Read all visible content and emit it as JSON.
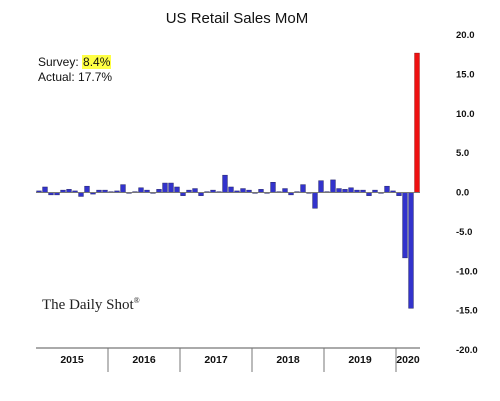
{
  "chart_data": {
    "type": "bar",
    "title": "US Retail Sales MoM",
    "ylim": [
      -20,
      20
    ],
    "y_ticks": [
      "20.0",
      "15.0",
      "10.0",
      "5.0",
      "0.0",
      "-5.0",
      "-10.0",
      "-15.0",
      "-20.0"
    ],
    "y_axis_position": "right",
    "years": [
      "2015",
      "2016",
      "2017",
      "2018",
      "2019",
      "2020"
    ],
    "grid": false,
    "colors": {
      "bars": "#3333cc",
      "highlight": "#ee1111",
      "zero_line": "#777777"
    },
    "monthly_values": [
      0.2,
      0.7,
      -0.3,
      -0.3,
      0.3,
      0.4,
      0.2,
      -0.5,
      0.8,
      -0.2,
      0.3,
      0.3,
      0.1,
      0.2,
      1.0,
      0.0,
      0.1,
      0.6,
      0.3,
      -0.1,
      0.4,
      1.2,
      1.2,
      0.7,
      -0.4,
      0.3,
      0.5,
      -0.4,
      0.1,
      0.3,
      0.1,
      2.2,
      0.7,
      0.2,
      0.5,
      0.3,
      0.0,
      0.4,
      0.0,
      1.3,
      0.1,
      0.5,
      -0.3,
      0.1,
      1.0,
      -0.1,
      -2.0,
      1.5,
      0.1,
      1.6,
      0.5,
      0.4,
      0.6,
      0.3,
      0.3,
      -0.4,
      0.3,
      0.0,
      0.8,
      0.2,
      -0.4,
      -8.3,
      -14.7,
      17.7
    ],
    "highlight_index": 63
  },
  "annotations": {
    "survey_label": "Survey: ",
    "survey_value": "8.4%",
    "actual_label": "Actual:  ",
    "actual_value": "17.7%"
  },
  "watermark": {
    "text": "The Daily Shot",
    "mark": "®"
  }
}
